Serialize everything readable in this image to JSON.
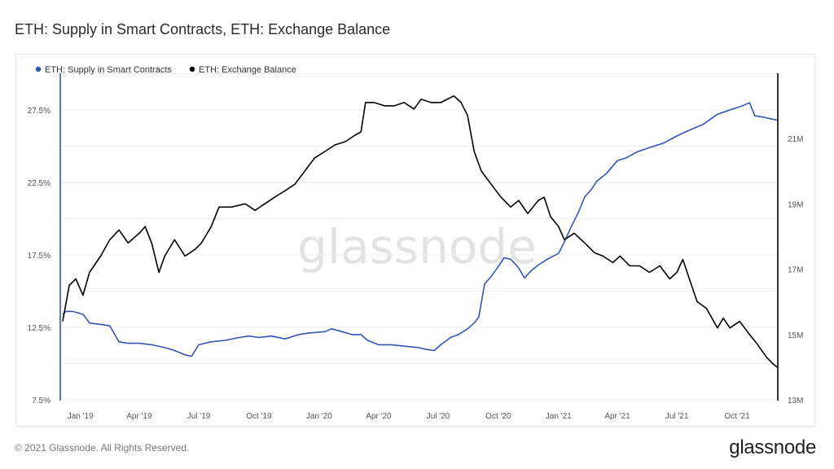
{
  "title": "ETH: Supply in Smart Contracts, ETH: Exchange Balance",
  "footer": {
    "copyright": "© 2021 Glassnode. All Rights Reserved.",
    "brand": "glassnode"
  },
  "watermark": "glassnode",
  "colors": {
    "blue": "#3355b5",
    "black": "#000000",
    "grid": "#eeeeee"
  },
  "chart_data": {
    "type": "line",
    "title": "ETH: Supply in Smart Contracts, ETH: Exchange Balance",
    "legend": [
      "ETH: Supply in Smart Contracts",
      "ETH: Exchange Balance"
    ],
    "legend_position": "top-left",
    "grid": true,
    "x_ticks": [
      "Jan '19",
      "Apr '19",
      "Jul '19",
      "Oct '19",
      "Jan '20",
      "Apr '20",
      "Jul '20",
      "Oct '20",
      "Jan '21",
      "Apr '21",
      "Jul '21",
      "Oct '21"
    ],
    "x_range": [
      "2018-12-05",
      "2021-12-01"
    ],
    "y_left": {
      "ticks": [
        "7.5%",
        "12.5%",
        "17.5%",
        "22.5%",
        "27.5%"
      ],
      "range": [
        7.5,
        30
      ]
    },
    "y_right": {
      "ticks": [
        "13M",
        "15M",
        "17M",
        "19M",
        "21M"
      ],
      "range": [
        13,
        23
      ]
    },
    "series": [
      {
        "name": "ETH: Supply in Smart Contracts",
        "axis": "left",
        "color": "#3355b5",
        "unit": "%",
        "points": [
          [
            "2018-12-05",
            13.4
          ],
          [
            "2018-12-10",
            13.6
          ],
          [
            "2018-12-20",
            13.6
          ],
          [
            "2019-01-05",
            13.4
          ],
          [
            "2019-01-15",
            12.8
          ],
          [
            "2019-02-01",
            12.7
          ],
          [
            "2019-02-15",
            12.6
          ],
          [
            "2019-03-01",
            11.5
          ],
          [
            "2019-03-15",
            11.4
          ],
          [
            "2019-04-01",
            11.4
          ],
          [
            "2019-04-20",
            11.3
          ],
          [
            "2019-05-10",
            11.1
          ],
          [
            "2019-05-25",
            10.9
          ],
          [
            "2019-06-10",
            10.6
          ],
          [
            "2019-06-20",
            10.5
          ],
          [
            "2019-07-01",
            11.3
          ],
          [
            "2019-07-20",
            11.5
          ],
          [
            "2019-08-10",
            11.6
          ],
          [
            "2019-09-01",
            11.8
          ],
          [
            "2019-09-15",
            11.9
          ],
          [
            "2019-10-01",
            11.8
          ],
          [
            "2019-10-20",
            11.9
          ],
          [
            "2019-11-10",
            11.7
          ],
          [
            "2019-12-01",
            12.0
          ],
          [
            "2019-12-15",
            12.1
          ],
          [
            "2020-01-10",
            12.2
          ],
          [
            "2020-01-20",
            12.4
          ],
          [
            "2020-02-05",
            12.2
          ],
          [
            "2020-02-20",
            12.0
          ],
          [
            "2020-03-05",
            12.0
          ],
          [
            "2020-03-15",
            11.6
          ],
          [
            "2020-04-01",
            11.3
          ],
          [
            "2020-04-20",
            11.3
          ],
          [
            "2020-05-10",
            11.2
          ],
          [
            "2020-06-01",
            11.1
          ],
          [
            "2020-06-10",
            11.0
          ],
          [
            "2020-06-25",
            10.9
          ],
          [
            "2020-07-05",
            11.3
          ],
          [
            "2020-07-20",
            11.8
          ],
          [
            "2020-08-01",
            12.0
          ],
          [
            "2020-08-15",
            12.4
          ],
          [
            "2020-08-25",
            12.8
          ],
          [
            "2020-09-01",
            13.2
          ],
          [
            "2020-09-10",
            15.5
          ],
          [
            "2020-09-20",
            16.0
          ],
          [
            "2020-10-01",
            16.7
          ],
          [
            "2020-10-10",
            17.3
          ],
          [
            "2020-10-20",
            17.2
          ],
          [
            "2020-11-01",
            16.6
          ],
          [
            "2020-11-10",
            15.9
          ],
          [
            "2020-11-20",
            16.4
          ],
          [
            "2020-12-01",
            16.8
          ],
          [
            "2020-12-15",
            17.2
          ],
          [
            "2021-01-01",
            17.6
          ],
          [
            "2021-01-10",
            18.4
          ],
          [
            "2021-01-20",
            19.4
          ],
          [
            "2021-02-01",
            20.5
          ],
          [
            "2021-02-10",
            21.5
          ],
          [
            "2021-02-20",
            22.0
          ],
          [
            "2021-03-01",
            22.6
          ],
          [
            "2021-03-15",
            23.1
          ],
          [
            "2021-04-01",
            24.0
          ],
          [
            "2021-04-15",
            24.2
          ],
          [
            "2021-05-01",
            24.6
          ],
          [
            "2021-05-20",
            24.9
          ],
          [
            "2021-06-10",
            25.2
          ],
          [
            "2021-07-01",
            25.7
          ],
          [
            "2021-07-20",
            26.1
          ],
          [
            "2021-08-10",
            26.5
          ],
          [
            "2021-09-01",
            27.2
          ],
          [
            "2021-09-20",
            27.5
          ],
          [
            "2021-10-10",
            27.8
          ],
          [
            "2021-10-20",
            28.0
          ],
          [
            "2021-10-28",
            27.1
          ],
          [
            "2021-11-10",
            27.0
          ],
          [
            "2021-11-20",
            26.9
          ],
          [
            "2021-12-01",
            26.8
          ]
        ]
      },
      {
        "name": "ETH: Exchange Balance",
        "axis": "right",
        "color": "#000000",
        "unit": "M",
        "points": [
          [
            "2018-12-05",
            15.4
          ],
          [
            "2018-12-15",
            16.5
          ],
          [
            "2018-12-25",
            16.7
          ],
          [
            "2019-01-05",
            16.2
          ],
          [
            "2019-01-15",
            16.9
          ],
          [
            "2019-02-01",
            17.4
          ],
          [
            "2019-02-15",
            17.9
          ],
          [
            "2019-03-01",
            18.2
          ],
          [
            "2019-03-15",
            17.8
          ],
          [
            "2019-04-01",
            18.1
          ],
          [
            "2019-04-10",
            18.3
          ],
          [
            "2019-04-20",
            17.8
          ],
          [
            "2019-05-01",
            16.9
          ],
          [
            "2019-05-10",
            17.4
          ],
          [
            "2019-05-25",
            17.9
          ],
          [
            "2019-06-10",
            17.4
          ],
          [
            "2019-06-25",
            17.6
          ],
          [
            "2019-07-05",
            17.8
          ],
          [
            "2019-07-20",
            18.3
          ],
          [
            "2019-08-01",
            18.9
          ],
          [
            "2019-08-20",
            18.9
          ],
          [
            "2019-09-10",
            19.0
          ],
          [
            "2019-09-25",
            18.8
          ],
          [
            "2019-10-10",
            19.0
          ],
          [
            "2019-10-25",
            19.2
          ],
          [
            "2019-11-10",
            19.4
          ],
          [
            "2019-11-25",
            19.6
          ],
          [
            "2019-12-10",
            20.0
          ],
          [
            "2019-12-25",
            20.4
          ],
          [
            "2020-01-10",
            20.6
          ],
          [
            "2020-01-25",
            20.8
          ],
          [
            "2020-02-10",
            20.9
          ],
          [
            "2020-02-25",
            21.1
          ],
          [
            "2020-03-05",
            21.2
          ],
          [
            "2020-03-12",
            22.1
          ],
          [
            "2020-03-25",
            22.1
          ],
          [
            "2020-04-10",
            22.0
          ],
          [
            "2020-04-25",
            22.0
          ],
          [
            "2020-05-10",
            22.1
          ],
          [
            "2020-05-25",
            21.9
          ],
          [
            "2020-06-05",
            22.2
          ],
          [
            "2020-06-20",
            22.1
          ],
          [
            "2020-07-05",
            22.1
          ],
          [
            "2020-07-15",
            22.2
          ],
          [
            "2020-07-25",
            22.3
          ],
          [
            "2020-08-05",
            22.1
          ],
          [
            "2020-08-15",
            21.7
          ],
          [
            "2020-08-25",
            20.6
          ],
          [
            "2020-09-05",
            20.0
          ],
          [
            "2020-09-20",
            19.6
          ],
          [
            "2020-10-05",
            19.2
          ],
          [
            "2020-10-20",
            18.9
          ],
          [
            "2020-11-01",
            19.1
          ],
          [
            "2020-11-15",
            18.7
          ],
          [
            "2020-12-01",
            19.1
          ],
          [
            "2020-12-10",
            19.2
          ],
          [
            "2020-12-20",
            18.6
          ],
          [
            "2021-01-01",
            18.3
          ],
          [
            "2021-01-10",
            17.9
          ],
          [
            "2021-01-25",
            18.1
          ],
          [
            "2021-02-10",
            17.8
          ],
          [
            "2021-02-25",
            17.5
          ],
          [
            "2021-03-10",
            17.4
          ],
          [
            "2021-03-25",
            17.2
          ],
          [
            "2021-04-05",
            17.4
          ],
          [
            "2021-04-20",
            17.1
          ],
          [
            "2021-05-05",
            17.1
          ],
          [
            "2021-05-20",
            16.9
          ],
          [
            "2021-06-05",
            17.1
          ],
          [
            "2021-06-20",
            16.7
          ],
          [
            "2021-07-01",
            16.9
          ],
          [
            "2021-07-10",
            17.3
          ],
          [
            "2021-07-20",
            16.7
          ],
          [
            "2021-08-01",
            16.0
          ],
          [
            "2021-08-15",
            15.8
          ],
          [
            "2021-09-01",
            15.2
          ],
          [
            "2021-09-10",
            15.5
          ],
          [
            "2021-09-20",
            15.2
          ],
          [
            "2021-10-05",
            15.4
          ],
          [
            "2021-10-20",
            15.0
          ],
          [
            "2021-11-01",
            14.7
          ],
          [
            "2021-11-15",
            14.3
          ],
          [
            "2021-11-25",
            14.1
          ],
          [
            "2021-12-01",
            14.0
          ]
        ]
      }
    ]
  }
}
